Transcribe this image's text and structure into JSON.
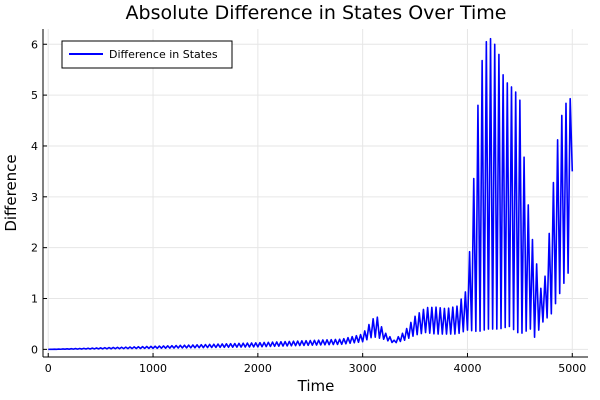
{
  "chart_data": {
    "type": "line",
    "title": "Absolute Difference in States Over Time",
    "xlabel": "Time",
    "ylabel": "Difference",
    "xlim": [
      -50,
      5150
    ],
    "ylim": [
      -0.15,
      6.3
    ],
    "xticks": [
      0,
      1000,
      2000,
      3000,
      4000,
      5000
    ],
    "xtick_labels": [
      "0",
      "1000",
      "2000",
      "3000",
      "4000",
      "5000"
    ],
    "yticks": [
      0,
      1,
      2,
      3,
      4,
      5,
      6
    ],
    "ytick_labels": [
      "0",
      "1",
      "2",
      "3",
      "4",
      "5",
      "6"
    ],
    "grid": true,
    "legend_position": "top-left",
    "series": [
      {
        "name": "Difference in States",
        "color": "#0000ff",
        "lower_envelope": {
          "x": [
            0,
            1000,
            2000,
            2800,
            3000,
            3100,
            3200,
            3300,
            3400,
            3500,
            3600,
            3700,
            3800,
            3900,
            4000,
            4100,
            4200,
            4300,
            4400,
            4500,
            4600,
            4650,
            4700,
            4750,
            4800,
            4900,
            5000
          ],
          "y": [
            0,
            0.02,
            0.05,
            0.1,
            0.15,
            0.25,
            0.2,
            0.12,
            0.18,
            0.28,
            0.33,
            0.3,
            0.3,
            0.3,
            0.38,
            0.35,
            0.4,
            0.4,
            0.45,
            0.3,
            0.4,
            0.2,
            0.5,
            0.6,
            0.7,
            1.2,
            1.7
          ]
        },
        "upper_envelope": {
          "x": [
            0,
            1000,
            2000,
            2800,
            3000,
            3080,
            3130,
            3200,
            3300,
            3400,
            3500,
            3600,
            3700,
            3800,
            3900,
            4000,
            4050,
            4100,
            4150,
            4200,
            4250,
            4300,
            4350,
            4400,
            4450,
            4500,
            4550,
            4600,
            4650,
            4700,
            4750,
            4800,
            4850,
            4900,
            4950,
            5000
          ],
          "y": [
            0,
            0.06,
            0.13,
            0.2,
            0.3,
            0.55,
            0.68,
            0.35,
            0.18,
            0.35,
            0.65,
            0.82,
            0.83,
            0.8,
            0.85,
            1.2,
            3.0,
            4.8,
            5.9,
            6.15,
            6.05,
            5.8,
            5.3,
            5.2,
            5.1,
            4.9,
            3.5,
            2.4,
            1.8,
            1.2,
            1.5,
            2.8,
            4.0,
            4.6,
            4.9,
            4.95
          ]
        },
        "oscillation_period": 40,
        "last_value": 3.5
      }
    ]
  }
}
